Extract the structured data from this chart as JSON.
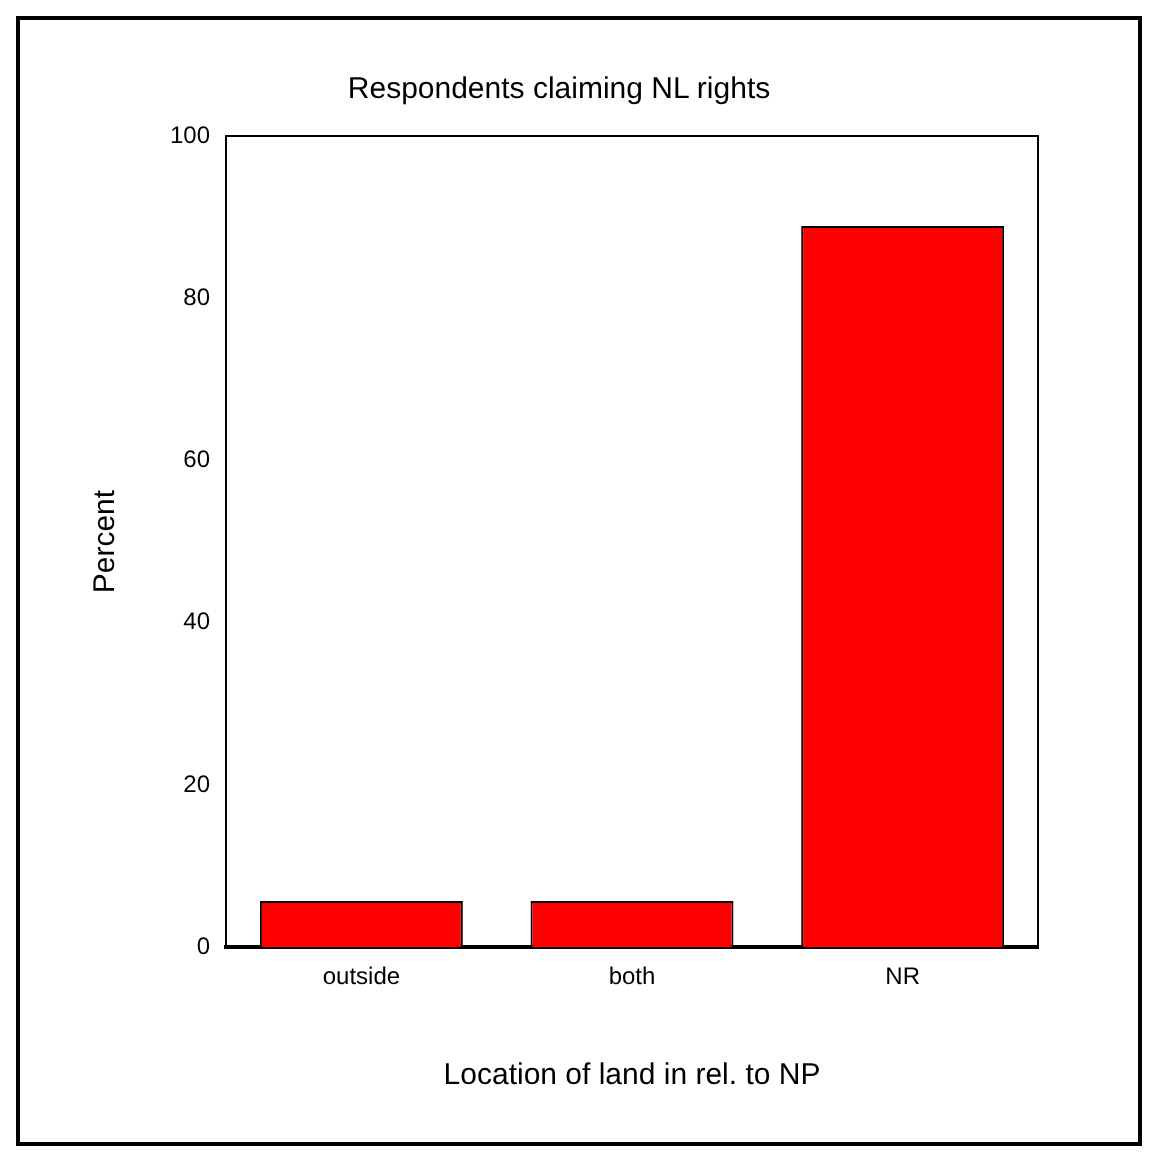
{
  "chart_data": {
    "type": "bar",
    "title": "Respondents claiming NL rights",
    "xlabel": "Location of land in rel. to NP",
    "ylabel": "Percent",
    "categories": [
      "outside",
      "both",
      "NR"
    ],
    "values": [
      5.7,
      5.7,
      88.9
    ],
    "color": "#ff0000",
    "ylim": [
      0,
      100
    ],
    "yticks": [
      0,
      20,
      40,
      60,
      80,
      100
    ],
    "grid": false,
    "legend": false
  }
}
